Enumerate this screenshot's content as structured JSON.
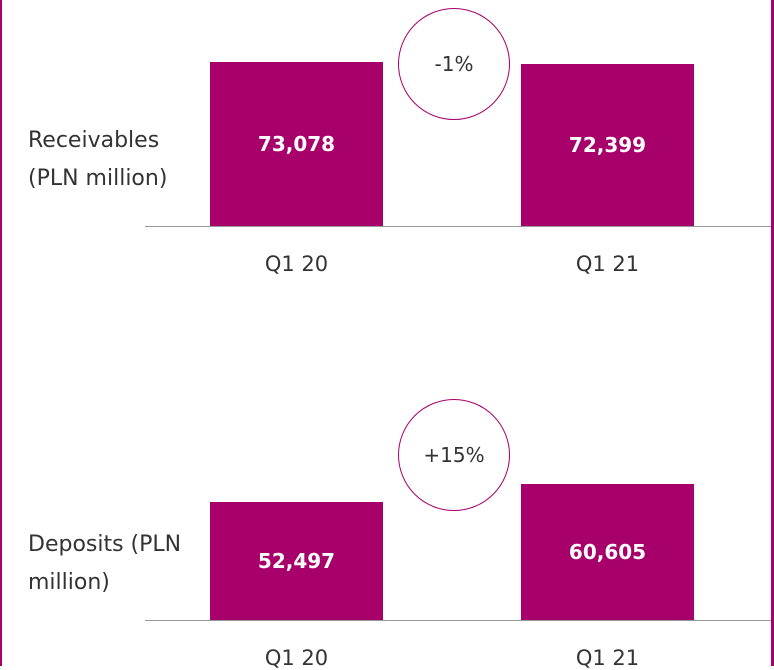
{
  "chart_data": [
    {
      "type": "bar",
      "y_label": "Receivables (PLN million)",
      "annotation": "-1%",
      "categories": [
        "Q1 20",
        "Q1 21"
      ],
      "values": [
        73078,
        72399
      ],
      "value_labels": [
        "73,078",
        "72,399"
      ],
      "color": "#a8006b"
    },
    {
      "type": "bar",
      "y_label": "Deposits (PLN million)",
      "annotation": "+15%",
      "categories": [
        "Q1 20",
        "Q1 21"
      ],
      "values": [
        52497,
        60605
      ],
      "value_labels": [
        "52,497",
        "60,605"
      ],
      "color": "#a8006b"
    }
  ]
}
